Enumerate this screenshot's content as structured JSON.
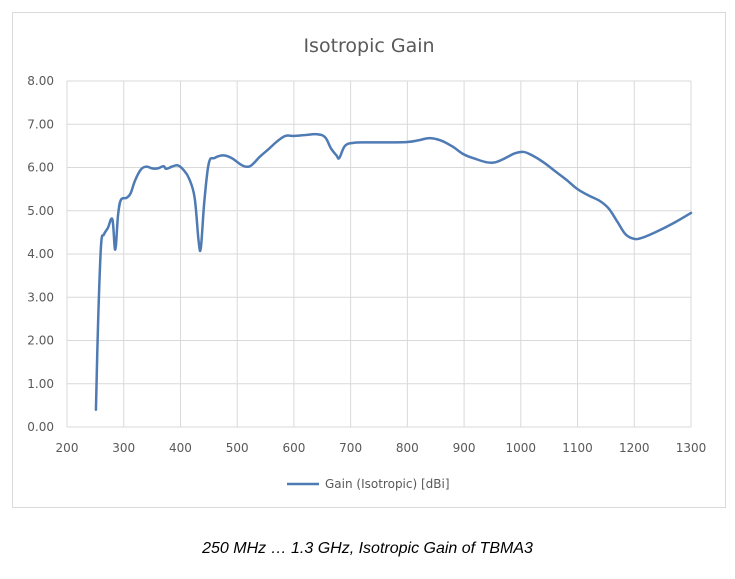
{
  "chart_data": {
    "type": "line",
    "title": "Isotropic Gain",
    "xlabel": "",
    "ylabel": "",
    "xlim": [
      200,
      1300
    ],
    "ylim": [
      0,
      8
    ],
    "x_ticks": [
      "200",
      "300",
      "400",
      "500",
      "600",
      "700",
      "800",
      "900",
      "1000",
      "1100",
      "1200",
      "1300"
    ],
    "y_ticks": [
      "0.00",
      "1.00",
      "2.00",
      "3.00",
      "4.00",
      "5.00",
      "6.00",
      "7.00",
      "8.00"
    ],
    "grid": true,
    "legend_position": "bottom",
    "series": [
      {
        "name": "Gain (Isotropic) [dBi]",
        "color": "#4f7bb4",
        "points": [
          [
            251,
            0.4
          ],
          [
            255,
            2.5
          ],
          [
            260,
            4.2
          ],
          [
            265,
            4.45
          ],
          [
            272,
            4.6
          ],
          [
            280,
            4.8
          ],
          [
            285,
            4.1
          ],
          [
            290,
            4.9
          ],
          [
            295,
            5.25
          ],
          [
            305,
            5.3
          ],
          [
            312,
            5.4
          ],
          [
            320,
            5.7
          ],
          [
            330,
            5.95
          ],
          [
            340,
            6.02
          ],
          [
            350,
            5.98
          ],
          [
            360,
            5.98
          ],
          [
            370,
            6.03
          ],
          [
            375,
            5.97
          ],
          [
            385,
            6.02
          ],
          [
            395,
            6.05
          ],
          [
            405,
            5.95
          ],
          [
            415,
            5.75
          ],
          [
            425,
            5.3
          ],
          [
            432,
            4.3
          ],
          [
            436,
            4.15
          ],
          [
            442,
            5.2
          ],
          [
            450,
            6.1
          ],
          [
            460,
            6.22
          ],
          [
            475,
            6.28
          ],
          [
            490,
            6.22
          ],
          [
            505,
            6.08
          ],
          [
            515,
            6.02
          ],
          [
            525,
            6.05
          ],
          [
            540,
            6.25
          ],
          [
            555,
            6.42
          ],
          [
            570,
            6.6
          ],
          [
            585,
            6.73
          ],
          [
            600,
            6.73
          ],
          [
            620,
            6.75
          ],
          [
            640,
            6.77
          ],
          [
            655,
            6.7
          ],
          [
            665,
            6.45
          ],
          [
            675,
            6.28
          ],
          [
            680,
            6.22
          ],
          [
            690,
            6.5
          ],
          [
            705,
            6.57
          ],
          [
            730,
            6.58
          ],
          [
            760,
            6.58
          ],
          [
            800,
            6.59
          ],
          [
            820,
            6.63
          ],
          [
            840,
            6.68
          ],
          [
            860,
            6.62
          ],
          [
            880,
            6.48
          ],
          [
            900,
            6.3
          ],
          [
            920,
            6.2
          ],
          [
            940,
            6.12
          ],
          [
            955,
            6.12
          ],
          [
            970,
            6.2
          ],
          [
            990,
            6.33
          ],
          [
            1005,
            6.36
          ],
          [
            1020,
            6.28
          ],
          [
            1040,
            6.12
          ],
          [
            1060,
            5.92
          ],
          [
            1080,
            5.72
          ],
          [
            1100,
            5.5
          ],
          [
            1120,
            5.35
          ],
          [
            1140,
            5.22
          ],
          [
            1155,
            5.05
          ],
          [
            1170,
            4.75
          ],
          [
            1185,
            4.45
          ],
          [
            1200,
            4.35
          ],
          [
            1215,
            4.38
          ],
          [
            1240,
            4.52
          ],
          [
            1270,
            4.72
          ],
          [
            1300,
            4.95
          ]
        ]
      }
    ]
  },
  "caption": "250 MHz … 1.3 GHz, Isotropic Gain of TBMA3"
}
